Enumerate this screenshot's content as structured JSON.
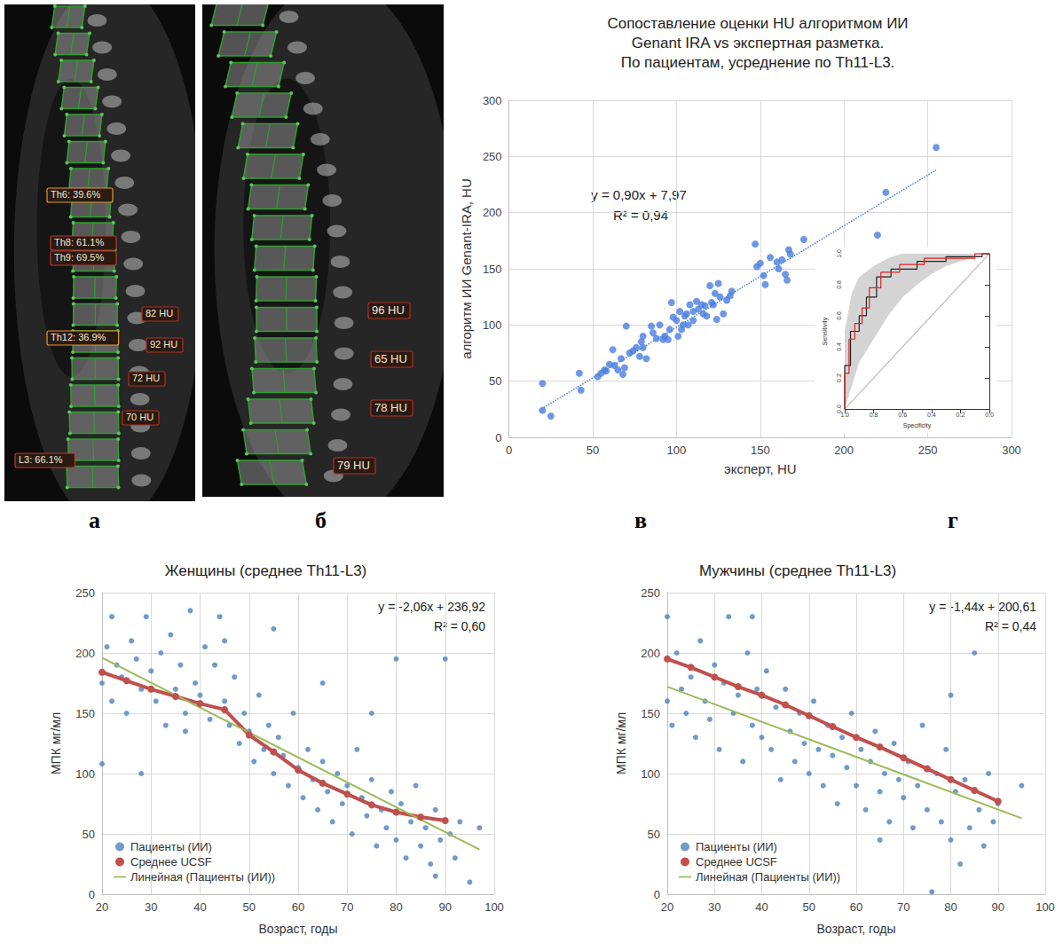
{
  "images": [
    {
      "labels": [
        {
          "text": "Th6: 39.6%",
          "color": "#e09a30"
        },
        {
          "text": "Th8: 61.1%",
          "color": "#c0392b"
        },
        {
          "text": "Th9: 69.5%",
          "color": "#c0392b"
        },
        {
          "text": "Th12: 36.9%",
          "color": "#e09a30"
        },
        {
          "text": "L3: 66.1%",
          "color": "#c0392b"
        },
        {
          "text": "82 HU",
          "color": "#b03020"
        },
        {
          "text": "92 HU",
          "color": "#b03020"
        },
        {
          "text": "72 HU",
          "color": "#b03020"
        },
        {
          "text": "70 HU",
          "color": "#b03020"
        }
      ]
    },
    {
      "labels": [
        {
          "text": "96 HU",
          "color": "#b03020"
        },
        {
          "text": "65 HU",
          "color": "#b03020"
        },
        {
          "text": "78 HU",
          "color": "#b03020"
        },
        {
          "text": "79 HU",
          "color": "#b03020"
        }
      ]
    }
  ],
  "panel_letters": [
    "а",
    "б",
    "в",
    "г"
  ],
  "chart_data": [
    {
      "type": "scatter",
      "title": "Сопоставление оценки HU алгоритмом ИИ\nGenant IRA vs экспертная разметка.\nПо пациентам, усреднение по Th11-L3.",
      "x_label": "эксперт, HU",
      "y_label": "алгоритм ИИ Genant-IRA, HU",
      "annotation": [
        "y = 0,90x + 7,97",
        "R² = 0,94"
      ],
      "xlim": [
        0,
        300
      ],
      "xticks": [
        0,
        50,
        100,
        150,
        200,
        250,
        300
      ],
      "ylim": [
        0,
        300
      ],
      "yticks": [
        0,
        50,
        100,
        150,
        200,
        250,
        300
      ],
      "grid": true,
      "series": [
        {
          "type": "scatter",
          "color": "#4a7ede",
          "marker": "circle",
          "x": [
            20,
            20,
            25,
            42,
            43,
            53,
            55,
            57,
            58,
            62,
            60,
            63,
            65,
            67,
            68,
            70,
            69,
            72,
            74,
            76,
            78,
            79,
            80,
            80,
            82,
            85,
            86,
            88,
            90,
            92,
            93,
            95,
            96,
            97,
            98,
            100,
            101,
            102,
            103,
            104,
            105,
            106,
            107,
            108,
            110,
            110,
            112,
            113,
            115,
            116,
            117,
            118,
            120,
            121,
            122,
            123,
            124,
            125,
            126,
            128,
            130,
            132,
            133,
            147,
            148,
            150,
            152,
            153,
            156,
            160,
            161,
            163,
            165,
            166,
            167,
            168,
            176,
            220,
            225,
            255
          ],
          "values": [
            48,
            24,
            19,
            57,
            42,
            54,
            57,
            60,
            59,
            78,
            65,
            64,
            60,
            70,
            56,
            99,
            62,
            75,
            77,
            80,
            72,
            85,
            90,
            80,
            70,
            99,
            93,
            88,
            100,
            87,
            90,
            87,
            96,
            120,
            107,
            104,
            90,
            112,
            96,
            100,
            108,
            110,
            100,
            118,
            104,
            112,
            121,
            114,
            118,
            110,
            117,
            108,
            135,
            120,
            118,
            128,
            105,
            137,
            125,
            110,
            122,
            126,
            130,
            172,
            152,
            155,
            144,
            136,
            160,
            156,
            150,
            158,
            145,
            140,
            167,
            163,
            176,
            180,
            218,
            258
          ]
        },
        {
          "type": "line",
          "color": "#4a7ede",
          "line_style": "dotted",
          "x": [
            18,
            255
          ],
          "values": [
            24,
            238
          ]
        }
      ]
    },
    {
      "type": "line",
      "x_label": "Specificity",
      "y_label": "Sensitivity",
      "xlim": [
        1,
        0
      ],
      "xticks": [
        {
          "value": 1,
          "label": "1.0"
        },
        {
          "value": 0.8,
          "label": "0.8"
        },
        {
          "value": 0.6,
          "label": "0.6"
        },
        {
          "value": 0.4,
          "label": "0.4"
        },
        {
          "value": 0.2,
          "label": "0.2"
        },
        {
          "value": 0,
          "label": "0.0"
        }
      ],
      "ylim": [
        0,
        1
      ],
      "yticks": [
        {
          "value": 0,
          "label": "0.0"
        },
        {
          "value": 0.2,
          "label": "0.2"
        },
        {
          "value": 0.4,
          "label": "0.4"
        },
        {
          "value": 0.6,
          "label": "0.6"
        },
        {
          "value": 0.8,
          "label": "0.8"
        },
        {
          "value": 1,
          "label": "1.0"
        }
      ],
      "grid": false,
      "series": [
        {
          "type": "band",
          "color": "#d4d4d4",
          "x": [
            1,
            0.95,
            0.9,
            0.8,
            0.7,
            0.6,
            0.5,
            0.4,
            0.3,
            0.2,
            0.1,
            0
          ],
          "lower": [
            0,
            0.15,
            0.3,
            0.45,
            0.6,
            0.72,
            0.8,
            0.87,
            0.92,
            0.95,
            0.98,
            1
          ],
          "upper": [
            0.5,
            0.75,
            0.85,
            0.92,
            0.97,
            1,
            1,
            1,
            1,
            1,
            1,
            1
          ]
        },
        {
          "type": "line",
          "color": "#bbbbbb",
          "line_style": "solid",
          "x": [
            1,
            0
          ],
          "values": [
            0,
            1
          ]
        },
        {
          "type": "line",
          "color": "#222222",
          "line_style": "solid",
          "x": [
            1,
            1,
            0.96,
            0.96,
            0.9,
            0.9,
            0.85,
            0.85,
            0.78,
            0.78,
            0.68,
            0.68,
            0.5,
            0.5,
            0.3,
            0.3,
            0.05,
            0.05,
            0
          ],
          "values": [
            0,
            0.28,
            0.28,
            0.5,
            0.5,
            0.6,
            0.6,
            0.72,
            0.72,
            0.85,
            0.85,
            0.9,
            0.9,
            0.95,
            0.95,
            0.98,
            0.98,
            1,
            1
          ]
        },
        {
          "type": "line",
          "color": "#e02020",
          "line_style": "solid",
          "x": [
            1,
            1,
            0.97,
            0.97,
            0.93,
            0.93,
            0.88,
            0.88,
            0.83,
            0.83,
            0.75,
            0.75,
            0.62,
            0.62,
            0.45,
            0.45,
            0.1,
            0.1,
            0
          ],
          "values": [
            0,
            0.23,
            0.23,
            0.45,
            0.45,
            0.55,
            0.55,
            0.65,
            0.65,
            0.78,
            0.78,
            0.88,
            0.88,
            0.93,
            0.93,
            0.97,
            0.97,
            1,
            1
          ]
        }
      ]
    },
    {
      "type": "scatter",
      "title": "Женщины (среднее Th11-L3)",
      "x_label": "Возраст, годы",
      "y_label": "МПК мг/мл",
      "annotation": [
        "y = -2,06x + 236,92",
        "R² = 0,60"
      ],
      "xlim": [
        20,
        100
      ],
      "xticks": [
        20,
        30,
        40,
        50,
        60,
        70,
        80,
        90,
        100
      ],
      "ylim": [
        0,
        250
      ],
      "yticks": [
        0,
        50,
        100,
        150,
        200,
        250
      ],
      "grid": true,
      "legend": "bottom-left",
      "series": [
        {
          "name": "Пациенты (ИИ)",
          "type": "scatter",
          "color": "#4f81bd",
          "marker": "circle",
          "x": [
            20,
            21,
            22,
            22,
            23,
            24,
            25,
            26,
            27,
            28,
            29,
            30,
            31,
            32,
            33,
            34,
            35,
            36,
            37,
            38,
            39,
            40,
            41,
            42,
            43,
            44,
            45,
            46,
            47,
            48,
            49,
            50,
            51,
            52,
            53,
            54,
            55,
            56,
            57,
            58,
            59,
            60,
            61,
            62,
            63,
            64,
            65,
            66,
            67,
            68,
            69,
            70,
            71,
            72,
            73,
            74,
            75,
            76,
            77,
            78,
            79,
            80,
            81,
            82,
            83,
            84,
            85,
            86,
            87,
            88,
            89,
            90,
            91,
            92,
            93,
            95,
            97,
            20,
            28,
            37,
            45,
            55,
            65,
            75,
            80,
            88
          ],
          "values": [
            175,
            205,
            160,
            230,
            190,
            180,
            150,
            210,
            195,
            170,
            230,
            185,
            160,
            200,
            140,
            215,
            170,
            190,
            150,
            235,
            175,
            165,
            205,
            145,
            190,
            230,
            160,
            140,
            180,
            125,
            150,
            135,
            110,
            165,
            120,
            140,
            100,
            130,
            115,
            90,
            150,
            105,
            80,
            120,
            95,
            70,
            110,
            85,
            60,
            100,
            75,
            90,
            50,
            120,
            80,
            65,
            95,
            40,
            70,
            55,
            85,
            45,
            75,
            30,
            60,
            90,
            40,
            55,
            25,
            70,
            45,
            195,
            50,
            30,
            60,
            10,
            55,
            108,
            100,
            135,
            210,
            220,
            175,
            150,
            195,
            15
          ]
        },
        {
          "name": "Среднее UCSF",
          "type": "line",
          "color": "#c0504d",
          "marker": "circle",
          "line_style": "solid",
          "x": [
            20,
            25,
            30,
            35,
            40,
            45,
            50,
            55,
            60,
            65,
            70,
            75,
            80,
            85,
            90
          ],
          "values": [
            184,
            177,
            170,
            164,
            158,
            153,
            132,
            118,
            103,
            92,
            83,
            74,
            68,
            64,
            61
          ]
        },
        {
          "name": "Линейная (Пациенты (ИИ))",
          "type": "line",
          "color": "#9bbb59",
          "line_style": "solid",
          "x": [
            20,
            97
          ],
          "values": [
            196,
            37
          ]
        }
      ]
    },
    {
      "type": "scatter",
      "title": "Мужчины (среднее Th11-L3)",
      "x_label": "Возраст, годы",
      "y_label": "МПК мг/мл",
      "annotation": [
        "y = -1,44x + 200,61",
        "R² = 0,44"
      ],
      "xlim": [
        20,
        100
      ],
      "xticks": [
        20,
        30,
        40,
        50,
        60,
        70,
        80,
        90,
        100
      ],
      "ylim": [
        0,
        250
      ],
      "yticks": [
        0,
        50,
        100,
        150,
        200,
        250
      ],
      "grid": true,
      "legend": "bottom-left",
      "series": [
        {
          "name": "Пациенты (ИИ)",
          "type": "scatter",
          "color": "#4f81bd",
          "marker": "circle",
          "x": [
            20,
            20,
            21,
            22,
            23,
            24,
            25,
            26,
            27,
            28,
            29,
            30,
            31,
            32,
            33,
            34,
            35,
            36,
            37,
            38,
            39,
            40,
            41,
            42,
            43,
            44,
            45,
            46,
            47,
            48,
            49,
            50,
            51,
            52,
            53,
            54,
            55,
            56,
            57,
            58,
            59,
            60,
            61,
            62,
            63,
            64,
            65,
            66,
            67,
            68,
            69,
            70,
            71,
            72,
            73,
            74,
            75,
            76,
            77,
            78,
            79,
            80,
            81,
            82,
            83,
            84,
            85,
            86,
            87,
            88,
            89,
            90,
            95,
            38,
            65,
            80
          ],
          "values": [
            160,
            230,
            140,
            200,
            170,
            150,
            180,
            130,
            210,
            160,
            145,
            190,
            120,
            175,
            230,
            150,
            165,
            110,
            200,
            140,
            170,
            130,
            185,
            120,
            155,
            95,
            170,
            135,
            110,
            150,
            125,
            100,
            160,
            120,
            90,
            140,
            115,
            75,
            130,
            105,
            150,
            90,
            120,
            70,
            110,
            135,
            85,
            100,
            60,
            125,
            95,
            80,
            110,
            55,
            90,
            140,
            70,
            2,
            100,
            60,
            120,
            45,
            85,
            25,
            95,
            55,
            200,
            70,
            40,
            100,
            60,
            75,
            90,
            230,
            45,
            165
          ]
        },
        {
          "name": "Среднее UCSF",
          "type": "line",
          "color": "#c0504d",
          "marker": "circle",
          "line_style": "solid",
          "x": [
            20,
            25,
            30,
            35,
            40,
            45,
            50,
            55,
            60,
            65,
            70,
            75,
            80,
            85,
            90
          ],
          "values": [
            195,
            188,
            180,
            172,
            165,
            157,
            148,
            139,
            130,
            122,
            113,
            104,
            95,
            86,
            77
          ]
        },
        {
          "name": "Линейная (Пациенты (ИИ))",
          "type": "line",
          "color": "#9bbb59",
          "line_style": "solid",
          "x": [
            20,
            95
          ],
          "values": [
            172,
            63
          ]
        }
      ]
    }
  ]
}
